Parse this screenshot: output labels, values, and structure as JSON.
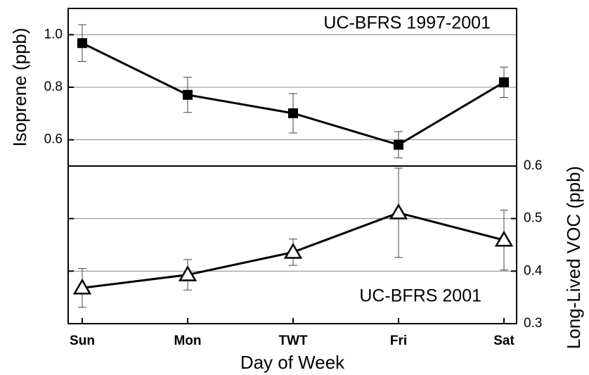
{
  "chart_data": {
    "type": "line",
    "categories": [
      "Sun",
      "Mon",
      "TWT",
      "Fri",
      "Sat"
    ],
    "xlabel": "Day of Week",
    "ylabel": "Isoprene (ppb)",
    "y2label": "Long-Lived VOC (ppb)",
    "ylim": [
      0.5,
      1.1
    ],
    "yticks": [
      0.6,
      0.8,
      {
        "value": 1,
        "label": "1.0"
      }
    ],
    "y2lim": [
      0.3,
      0.6
    ],
    "y2ticks": [
      0.3,
      0.4,
      0.5,
      0.6
    ],
    "grid": true,
    "annotations": [
      "UC-BFRS 1997-2001",
      "UC-BFRS 2001"
    ],
    "series": [
      {
        "color": "#000000",
        "marker": "square",
        "values": [
          0.968,
          0.771,
          0.701,
          0.581,
          0.819
        ],
        "errors": [
          0.07,
          0.067,
          0.075,
          0.05,
          0.058
        ]
      },
      {
        "color": "#000000",
        "marker": "triangle",
        "axis": "y2",
        "values": [
          0.368,
          0.393,
          0.436,
          0.511,
          0.459
        ],
        "errors": [
          0.037,
          0.029,
          0.025,
          0.085,
          0.057
        ]
      }
    ]
  }
}
